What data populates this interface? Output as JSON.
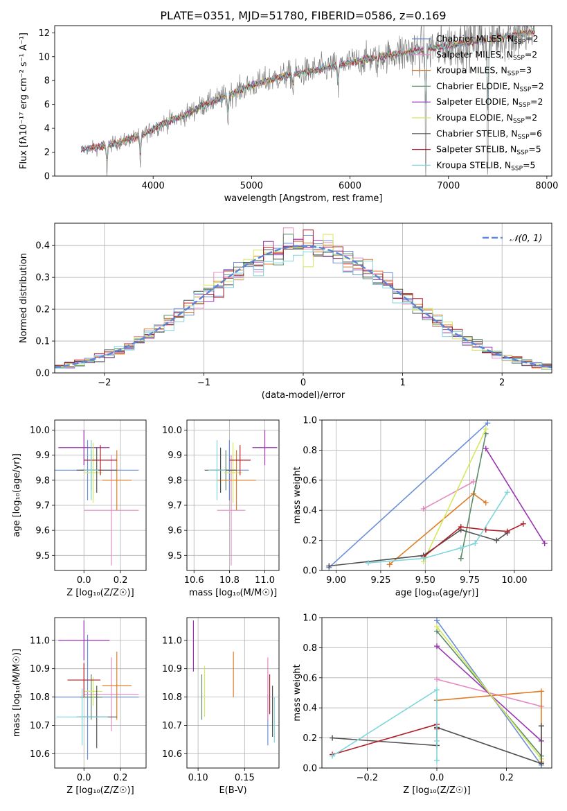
{
  "figure": {
    "title": "PLATE=0351, MJD=51780, FIBERID=0586, z=0.169"
  },
  "models": [
    {
      "name": "Chabrier MILES, N_SSP=2",
      "prefix": "Chabrier MILES, N",
      "sub": "SSP",
      "suffix": "=2",
      "color": "#6a8fd8"
    },
    {
      "name": "Salpeter MILES, N_SSP=2",
      "prefix": "Salpeter MILES, N",
      "sub": "SSP",
      "suffix": "=2",
      "color": "#e58ac2"
    },
    {
      "name": "Kroupa MILES, N_SSP=3",
      "prefix": "Kroupa MILES, N",
      "sub": "SSP",
      "suffix": "=3",
      "color": "#e07c28"
    },
    {
      "name": "Chabrier ELODIE, N_SSP=2",
      "prefix": "Chabrier ELODIE, N",
      "sub": "SSP",
      "suffix": "=2",
      "color": "#5a8c68"
    },
    {
      "name": "Salpeter ELODIE, N_SSP=2",
      "prefix": "Salpeter ELODIE, N",
      "sub": "SSP",
      "suffix": "=2",
      "color": "#9a34b2"
    },
    {
      "name": "Kroupa ELODIE, N_SSP=2",
      "prefix": "Kroupa ELODIE, N",
      "sub": "SSP",
      "suffix": "=2",
      "color": "#d6e85c"
    },
    {
      "name": "Chabrier STELIB, N_SSP=6",
      "prefix": "Chabrier STELIB, N",
      "sub": "SSP",
      "suffix": "=6",
      "color": "#505050"
    },
    {
      "name": "Salpeter STELIB, N_SSP=5",
      "prefix": "Salpeter STELIB, N",
      "sub": "SSP",
      "suffix": "=5",
      "color": "#b01e28"
    },
    {
      "name": "Kroupa STELIB, N_SSP=5",
      "prefix": "Kroupa STELIB, N",
      "sub": "SSP",
      "suffix": "=5",
      "color": "#7fd6dc"
    }
  ],
  "chart_data": [
    {
      "id": "spectrum",
      "type": "line",
      "xlabel": "wavelength [Angstrom, rest frame]",
      "ylabel": "Flux [fλ10⁻¹⁷ erg cm⁻² s⁻¹ A⁻¹]",
      "xlim": [
        3000,
        8050
      ],
      "ylim": [
        0,
        12.6
      ],
      "xticks": [
        4000,
        5000,
        6000,
        7000,
        8000
      ],
      "yticks": [
        0,
        2,
        4,
        6,
        8,
        10,
        12
      ],
      "data_color": "#808080",
      "x_range": [
        3270,
        7880
      ],
      "continuum": {
        "x": [
          3270,
          3500,
          3700,
          3900,
          4100,
          4300,
          4500,
          4800,
          5000,
          5200,
          5400,
          5600,
          5800,
          6000,
          6300,
          6600,
          6900,
          7200,
          7500,
          7800,
          7880
        ],
        "y": [
          2.2,
          2.5,
          2.9,
          3.5,
          4.4,
          5.0,
          5.9,
          6.9,
          7.6,
          8.1,
          8.5,
          8.8,
          9.1,
          9.5,
          10.0,
          10.4,
          10.8,
          11.2,
          11.6,
          12.0,
          12.1
        ]
      },
      "absorption_features": [
        {
          "x": 3530,
          "depth": 2.3
        },
        {
          "x": 3870,
          "depth": 2.8
        },
        {
          "x": 4760,
          "depth": 2.5
        },
        {
          "x": 5420,
          "depth": 1.6
        },
        {
          "x": 5880,
          "depth": 2.2
        },
        {
          "x": 6280,
          "depth": 1.0
        },
        {
          "x": 6770,
          "depth": 10.0
        },
        {
          "x": 7400,
          "depth": 11.0
        }
      ],
      "legend_position": "right"
    },
    {
      "id": "residual-histogram",
      "type": "histogram",
      "xlabel": "(data-model)/error",
      "ylabel": "Normed distribution",
      "xlim": [
        -2.5,
        2.5
      ],
      "ylim": [
        0,
        0.47
      ],
      "xticks": [
        -2,
        -1,
        0,
        1,
        2
      ],
      "yticks": [
        0.0,
        0.1,
        0.2,
        0.3,
        0.4
      ],
      "bin_width": 0.1,
      "grid": true,
      "reference": {
        "label": "𝒩(0, 1)",
        "mean": 0,
        "sigma": 1,
        "color": "#5b84d6"
      },
      "legend_position": "top-right"
    },
    {
      "id": "age-vs-z",
      "type": "errorbar",
      "xlabel": "Z [log₁₀(Z/Z☉)]",
      "ylabel": "age  [log₁₀(age/yr)]",
      "xlim": [
        -0.16,
        0.34
      ],
      "ylim": [
        9.44,
        10.04
      ],
      "xticks": [
        0.0,
        0.2
      ],
      "yticks": [
        9.5,
        9.6,
        9.7,
        9.8,
        9.9,
        10.0
      ],
      "grid": true,
      "points": [
        {
          "model": 0,
          "x": 0.02,
          "y": 9.84,
          "xerr": 0.28,
          "yerr": 0.12
        },
        {
          "model": 1,
          "x": 0.15,
          "y": 9.68,
          "xerr": 0.15,
          "yerr": 0.22
        },
        {
          "model": 2,
          "x": 0.18,
          "y": 9.8,
          "xerr": 0.08,
          "yerr": 0.12
        },
        {
          "model": 3,
          "x": 0.04,
          "y": 9.84,
          "xerr": 0.06,
          "yerr": 0.08
        },
        {
          "model": 4,
          "x": 0.0,
          "y": 9.93,
          "xerr": 0.14,
          "yerr": 0.07
        },
        {
          "model": 5,
          "x": 0.05,
          "y": 9.83,
          "xerr": 0.05,
          "yerr": 0.12
        },
        {
          "model": 6,
          "x": 0.07,
          "y": 9.84,
          "xerr": 0.11,
          "yerr": 0.09
        },
        {
          "model": 7,
          "x": 0.09,
          "y": 9.88,
          "xerr": 0.09,
          "yerr": 0.06
        },
        {
          "model": 8,
          "x": 0.04,
          "y": 9.84,
          "xerr": 0.04,
          "yerr": 0.12
        }
      ]
    },
    {
      "id": "age-vs-mass",
      "type": "errorbar",
      "xlabel": "mass [log₁₀(M/M☉)]",
      "ylabel": "",
      "xlim": [
        10.56,
        11.08
      ],
      "ylim": [
        9.44,
        10.04
      ],
      "xticks": [
        10.6,
        10.8,
        11.0
      ],
      "yticks": [
        9.5,
        9.6,
        9.7,
        9.8,
        9.9,
        10.0
      ],
      "grid": true,
      "points": [
        {
          "model": 0,
          "x": 10.8,
          "y": 9.84,
          "xerr": 0.11,
          "yerr": 0.12
        },
        {
          "model": 1,
          "x": 10.81,
          "y": 9.68,
          "xerr": 0.08,
          "yerr": 0.22
        },
        {
          "model": 2,
          "x": 10.84,
          "y": 9.8,
          "xerr": 0.11,
          "yerr": 0.12
        },
        {
          "model": 3,
          "x": 10.78,
          "y": 9.84,
          "xerr": 0.06,
          "yerr": 0.08
        },
        {
          "model": 4,
          "x": 11.0,
          "y": 9.93,
          "xerr": 0.07,
          "yerr": 0.07
        },
        {
          "model": 5,
          "x": 10.82,
          "y": 9.83,
          "xerr": 0.05,
          "yerr": 0.12
        },
        {
          "model": 6,
          "x": 10.75,
          "y": 9.84,
          "xerr": 0.09,
          "yerr": 0.09
        },
        {
          "model": 7,
          "x": 10.86,
          "y": 9.88,
          "xerr": 0.06,
          "yerr": 0.06
        },
        {
          "model": 8,
          "x": 10.73,
          "y": 9.84,
          "xerr": 0.05,
          "yerr": 0.12
        }
      ]
    },
    {
      "id": "mass-weight-vs-age",
      "type": "line",
      "xlabel": "age  [log₁₀(age/yr)]",
      "ylabel": "mass weight",
      "xlim": [
        8.92,
        10.21
      ],
      "ylim": [
        0,
        1.0
      ],
      "xticks": [
        9.0,
        9.25,
        9.5,
        9.75,
        10.0
      ],
      "xticklabels": [
        "9.00",
        "9.25",
        "9.50",
        "9.75",
        "10.00"
      ],
      "yticks": [
        0.0,
        0.2,
        0.4,
        0.6,
        0.8,
        1.0
      ],
      "grid": true,
      "series": [
        {
          "model": 0,
          "x": [
            8.96,
            9.85
          ],
          "y": [
            0.02,
            0.98
          ]
        },
        {
          "model": 1,
          "x": [
            9.49,
            9.77
          ],
          "y": [
            0.41,
            0.59
          ]
        },
        {
          "model": 2,
          "x": [
            9.3,
            9.77,
            9.84
          ],
          "y": [
            0.04,
            0.51,
            0.45
          ]
        },
        {
          "model": 3,
          "x": [
            9.7,
            9.84
          ],
          "y": [
            0.08,
            0.91
          ]
        },
        {
          "model": 4,
          "x": [
            9.84,
            10.17
          ],
          "y": [
            0.81,
            0.18
          ]
        },
        {
          "model": 5,
          "x": [
            9.49,
            9.84
          ],
          "y": [
            0.06,
            0.94
          ]
        },
        {
          "model": 6,
          "x": [
            8.96,
            9.49,
            9.7,
            9.9,
            9.96
          ],
          "y": [
            0.03,
            0.1,
            0.27,
            0.2,
            0.25
          ]
        },
        {
          "model": 7,
          "x": [
            9.49,
            9.7,
            9.84,
            9.96,
            10.05
          ],
          "y": [
            0.09,
            0.29,
            0.27,
            0.26,
            0.31
          ]
        },
        {
          "model": 8,
          "x": [
            9.18,
            9.49,
            9.7,
            9.78,
            9.96
          ],
          "y": [
            0.05,
            0.08,
            0.15,
            0.18,
            0.52
          ]
        }
      ]
    },
    {
      "id": "mass-vs-z",
      "type": "errorbar",
      "xlabel": "Z [log₁₀(Z/Z☉)]",
      "ylabel": "mass [log₁₀(M/M☉)]",
      "xlim": [
        -0.16,
        0.34
      ],
      "ylim": [
        10.55,
        11.08
      ],
      "xticks": [
        0.0,
        0.2
      ],
      "yticks": [
        10.6,
        10.7,
        10.8,
        10.9,
        11.0
      ],
      "grid": true,
      "points": [
        {
          "model": 0,
          "x": 0.02,
          "y": 10.8,
          "xerr": 0.28,
          "yerr": 0.22
        },
        {
          "model": 1,
          "x": 0.15,
          "y": 10.81,
          "xerr": 0.15,
          "yerr": 0.13
        },
        {
          "model": 2,
          "x": 0.18,
          "y": 10.84,
          "xerr": 0.08,
          "yerr": 0.12
        },
        {
          "model": 3,
          "x": 0.04,
          "y": 10.8,
          "xerr": 0.06,
          "yerr": 0.08
        },
        {
          "model": 4,
          "x": 0.0,
          "y": 11.0,
          "xerr": 0.14,
          "yerr": 0.07
        },
        {
          "model": 5,
          "x": 0.05,
          "y": 10.82,
          "xerr": 0.05,
          "yerr": 0.05
        },
        {
          "model": 6,
          "x": 0.07,
          "y": 10.73,
          "xerr": 0.11,
          "yerr": 0.11
        },
        {
          "model": 7,
          "x": 0.0,
          "y": 10.86,
          "xerr": 0.09,
          "yerr": 0.06
        },
        {
          "model": 8,
          "x": -0.01,
          "y": 10.73,
          "xerr": 0.14,
          "yerr": 0.1
        }
      ]
    },
    {
      "id": "mass-vs-ebv",
      "type": "errorbar",
      "xlabel": "E(B-V)",
      "ylabel": "",
      "xlim": [
        0.088,
        0.187
      ],
      "ylim": [
        10.55,
        11.08
      ],
      "xticks": [
        0.1,
        0.15
      ],
      "xticklabels": [
        "0.10",
        "0.15"
      ],
      "yticks": [
        10.6,
        10.7,
        10.8,
        10.9,
        11.0
      ],
      "grid": true,
      "points": [
        {
          "model": 0,
          "x": 0.175,
          "y": 10.72,
          "xerr": 0,
          "yerr": 0.09
        },
        {
          "model": 1,
          "x": 0.175,
          "y": 10.83,
          "xerr": 0,
          "yerr": 0.11
        },
        {
          "model": 2,
          "x": 0.138,
          "y": 10.88,
          "xerr": 0,
          "yerr": 0.08
        },
        {
          "model": 3,
          "x": 0.104,
          "y": 10.8,
          "xerr": 0,
          "yerr": 0.08
        },
        {
          "model": 4,
          "x": 0.095,
          "y": 10.98,
          "xerr": 0,
          "yerr": 0.09
        },
        {
          "model": 5,
          "x": 0.107,
          "y": 10.82,
          "xerr": 0,
          "yerr": 0.09
        },
        {
          "model": 6,
          "x": 0.18,
          "y": 10.75,
          "xerr": 0,
          "yerr": 0.09
        },
        {
          "model": 7,
          "x": 0.177,
          "y": 10.81,
          "xerr": 0,
          "yerr": 0.07
        },
        {
          "model": 8,
          "x": 0.182,
          "y": 10.72,
          "xerr": 0,
          "yerr": 0.08
        }
      ]
    },
    {
      "id": "mass-weight-vs-z",
      "type": "line",
      "xlabel": "Z [log₁₀(Z/Z☉)]",
      "ylabel": "mass weight",
      "xlim": [
        -0.33,
        0.33
      ],
      "ylim": [
        0,
        1.0
      ],
      "xticks": [
        -0.2,
        0.0,
        0.2
      ],
      "xticklabels": [
        "−0.2",
        "0.0",
        "0.2"
      ],
      "yticks": [
        0.0,
        0.2,
        0.4,
        0.6,
        0.8,
        1.0
      ],
      "grid": true,
      "series": [
        {
          "model": 0,
          "x": [
            0.0,
            0.3
          ],
          "y": [
            0.98,
            0.02
          ]
        },
        {
          "model": 1,
          "x": [
            0.0,
            0.3
          ],
          "y": [
            0.59,
            0.41
          ]
        },
        {
          "model": 2,
          "x": [
            0.0,
            0.3,
            0.3
          ],
          "y": [
            0.45,
            0.51,
            0.04
          ]
        },
        {
          "model": 3,
          "x": [
            0.0,
            0.3
          ],
          "y": [
            0.91,
            0.08
          ]
        },
        {
          "model": 4,
          "x": [
            0.0,
            0.3
          ],
          "y": [
            0.81,
            0.18
          ]
        },
        {
          "model": 5,
          "x": [
            0.0,
            0.3
          ],
          "y": [
            0.94,
            0.06
          ]
        },
        {
          "model": 6,
          "x": [
            -0.3,
            0.0,
            0.0,
            0.3,
            0.3
          ],
          "y": [
            0.2,
            0.15,
            0.27,
            0.03,
            0.28
          ]
        },
        {
          "model": 7,
          "x": [
            -0.3,
            0.0,
            0.0
          ],
          "y": [
            0.09,
            0.29,
            0.26
          ]
        },
        {
          "model": 8,
          "x": [
            -0.3,
            0.0,
            0.0,
            0.0
          ],
          "y": [
            0.08,
            0.52,
            0.18,
            0.05
          ]
        }
      ]
    }
  ]
}
